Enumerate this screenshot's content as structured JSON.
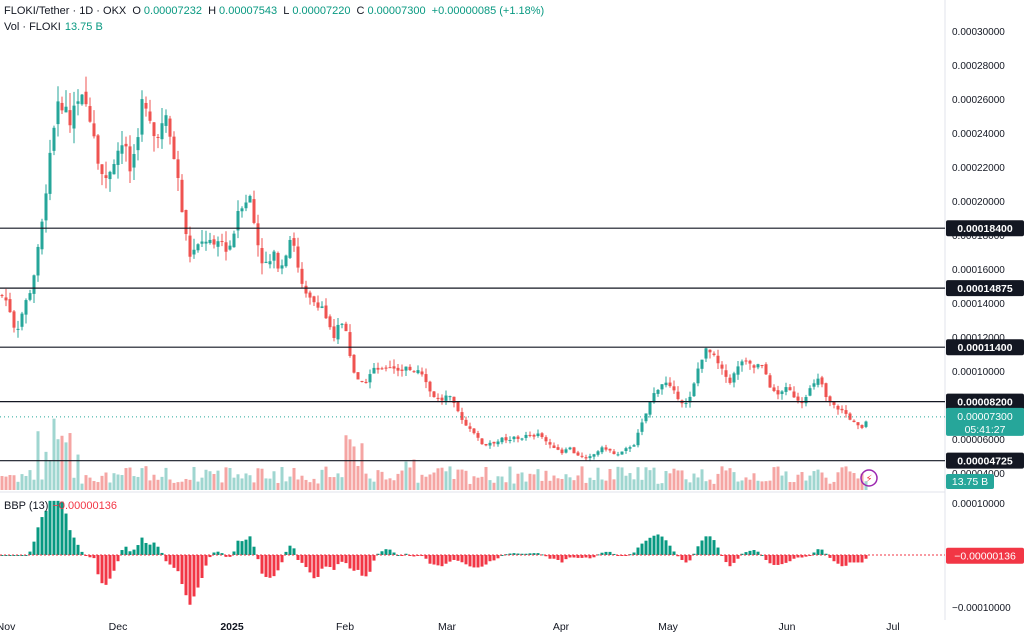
{
  "header": {
    "symbol": "FLOKI/Tether · 1D · OKX",
    "o_label": "O",
    "o_value": "0.00007232",
    "h_label": "H",
    "h_value": "0.00007543",
    "l_label": "L",
    "l_value": "0.00007220",
    "c_label": "C",
    "c_value": "0.00007300",
    "change": "+0.00000085 (+1.18%)",
    "vol_label": "Vol · FLOKI",
    "vol_value": "13.75 B"
  },
  "indicator": {
    "label": "BBP (13)",
    "value": "−0.00000136"
  },
  "colors": {
    "up": "#26a69a",
    "down": "#ef5350",
    "vol_up": "#9fd6d0",
    "vol_down": "#f5a5a3",
    "bbp_up": "#089981",
    "bbp_down": "#f23645",
    "tag_dark": "#131722"
  },
  "chart_data": {
    "type": "candlestick",
    "symbol": "FLOKI/Tether",
    "interval": "1D",
    "exchange": "OKX",
    "y_axis_ticks": [
      "0.00030000",
      "0.00028000",
      "0.00026000",
      "0.00024000",
      "0.00022000",
      "0.00020000",
      "0.00018000",
      "0.00016000",
      "0.00014000",
      "0.00012000",
      "0.00010000",
      "0.00008000",
      "0.00006000",
      "0.00004000"
    ],
    "ylim": [
      3e-05,
      0.00031
    ],
    "x_axis_ticks": [
      "Nov",
      "Dec",
      "2025",
      "Feb",
      "Mar",
      "Apr",
      "May",
      "Jun",
      "Jul"
    ],
    "horizontal_levels": [
      0.000184,
      0.00014875,
      0.000114,
      8.2e-05,
      4.725e-05
    ],
    "level_labels": [
      "0.00018400",
      "0.00014875",
      "0.00011400",
      "0.00008200",
      "0.00004725"
    ],
    "last_price_label": "0.00007300",
    "countdown": "05:41:27",
    "volume_label": "13.75 B",
    "bbp_axis_ticks": [
      "0.00010000",
      "−0.00010000"
    ],
    "bbp_ylim": [
      -0.00011,
      0.00011
    ],
    "bbp_last_label": "−0.00000136",
    "close_path": [
      [
        0,
        0.000146
      ],
      [
        8,
        0.00014
      ],
      [
        16,
        0.000122
      ],
      [
        24,
        0.000138
      ],
      [
        32,
        0.00015
      ],
      [
        40,
        0.000178
      ],
      [
        46,
        0.000205
      ],
      [
        52,
        0.00024
      ],
      [
        58,
        0.000255
      ],
      [
        64,
        0.000258
      ],
      [
        70,
        0.000245
      ],
      [
        76,
        0.000262
      ],
      [
        82,
        0.00026
      ],
      [
        88,
        0.000255
      ],
      [
        94,
        0.00024
      ],
      [
        100,
        0.000218
      ],
      [
        106,
        0.000212
      ],
      [
        112,
        0.000222
      ],
      [
        118,
        0.00023
      ],
      [
        124,
        0.000235
      ],
      [
        130,
        0.000218
      ],
      [
        136,
        0.000232
      ],
      [
        142,
        0.000258
      ],
      [
        148,
        0.00025
      ],
      [
        154,
        0.000238
      ],
      [
        160,
        0.000242
      ],
      [
        166,
        0.000248
      ],
      [
        172,
        0.000232
      ],
      [
        178,
        0.000212
      ],
      [
        184,
        0.000185
      ],
      [
        190,
        0.000168
      ],
      [
        196,
        0.000172
      ],
      [
        202,
        0.000175
      ],
      [
        208,
        0.000178
      ],
      [
        214,
        0.000172
      ],
      [
        220,
        0.000178
      ],
      [
        226,
        0.000172
      ],
      [
        232,
        0.000175
      ],
      [
        238,
        0.000195
      ],
      [
        244,
        0.0002
      ],
      [
        250,
        0.000202
      ],
      [
        256,
        0.00018
      ],
      [
        262,
        0.000165
      ],
      [
        268,
        0.000162
      ],
      [
        274,
        0.000168
      ],
      [
        280,
        0.00016
      ],
      [
        286,
        0.00017
      ],
      [
        292,
        0.000182
      ],
      [
        298,
        0.00016
      ],
      [
        304,
        0.000145
      ],
      [
        310,
        0.000142
      ],
      [
        316,
        0.00014
      ],
      [
        322,
        0.000138
      ],
      [
        328,
        0.000128
      ],
      [
        334,
        0.000118
      ],
      [
        340,
        0.00013
      ],
      [
        346,
        0.000125
      ],
      [
        352,
        0.000102
      ],
      [
        358,
        9.4e-05
      ],
      [
        364,
        9.2e-05
      ],
      [
        370,
        9.8e-05
      ],
      [
        376,
        0.000102
      ],
      [
        382,
        0.0001
      ],
      [
        388,
        0.000103
      ],
      [
        394,
        0.000102
      ],
      [
        400,
        0.0001
      ],
      [
        406,
        0.000102
      ],
      [
        412,
        0.0001
      ],
      [
        418,
        0.000101
      ],
      [
        424,
        9.8e-05
      ],
      [
        430,
        8.8e-05
      ],
      [
        436,
        8.4e-05
      ],
      [
        442,
        8.3e-05
      ],
      [
        448,
        8.6e-05
      ],
      [
        454,
        8e-05
      ],
      [
        460,
        7.4e-05
      ],
      [
        466,
        6.8e-05
      ],
      [
        472,
        6.6e-05
      ],
      [
        478,
        6e-05
      ],
      [
        484,
        5.6e-05
      ],
      [
        490,
        5.8e-05
      ],
      [
        496,
        5.8e-05
      ],
      [
        502,
        6e-05
      ],
      [
        508,
        5.8e-05
      ],
      [
        514,
        6.1e-05
      ],
      [
        520,
        6e-05
      ],
      [
        526,
        6.2e-05
      ],
      [
        532,
        6.1e-05
      ],
      [
        538,
        6.4e-05
      ],
      [
        544,
        6e-05
      ],
      [
        550,
        5.6e-05
      ],
      [
        556,
        5.5e-05
      ],
      [
        562,
        5.2e-05
      ],
      [
        568,
        5.6e-05
      ],
      [
        574,
        5.2e-05
      ],
      [
        580,
        5e-05
      ],
      [
        586,
        4.8e-05
      ],
      [
        592,
        5e-05
      ],
      [
        598,
        5.3e-05
      ],
      [
        604,
        5.5e-05
      ],
      [
        610,
        5.3e-05
      ],
      [
        616,
        5e-05
      ],
      [
        622,
        5.2e-05
      ],
      [
        628,
        5.5e-05
      ],
      [
        634,
        5.7e-05
      ],
      [
        640,
        6.6e-05
      ],
      [
        646,
        7.5e-05
      ],
      [
        652,
        8.5e-05
      ],
      [
        658,
        9e-05
      ],
      [
        664,
        9.4e-05
      ],
      [
        670,
        9e-05
      ],
      [
        676,
        8.6e-05
      ],
      [
        682,
        8.2e-05
      ],
      [
        688,
        8e-05
      ],
      [
        694,
        9.2e-05
      ],
      [
        700,
        0.000106
      ],
      [
        706,
        0.000112
      ],
      [
        712,
        0.00011
      ],
      [
        718,
        0.000104
      ],
      [
        724,
        9.8e-05
      ],
      [
        730,
        9.4e-05
      ],
      [
        736,
        0.0001
      ],
      [
        742,
        0.000106
      ],
      [
        748,
        0.000104
      ],
      [
        754,
        0.000102
      ],
      [
        760,
        0.000104
      ],
      [
        766,
        9.8e-05
      ],
      [
        772,
        8.8e-05
      ],
      [
        778,
        8.6e-05
      ],
      [
        784,
        9e-05
      ],
      [
        790,
        8.8e-05
      ],
      [
        796,
        8.4e-05
      ],
      [
        802,
        8.2e-05
      ],
      [
        808,
        8.8e-05
      ],
      [
        814,
        9.2e-05
      ],
      [
        820,
        9.6e-05
      ],
      [
        826,
        8.4e-05
      ],
      [
        832,
        8e-05
      ],
      [
        838,
        7.8e-05
      ],
      [
        844,
        7.6e-05
      ],
      [
        850,
        7.2e-05
      ],
      [
        856,
        6.8e-05
      ],
      [
        862,
        6.6e-05
      ],
      [
        868,
        7.3e-05
      ]
    ]
  }
}
